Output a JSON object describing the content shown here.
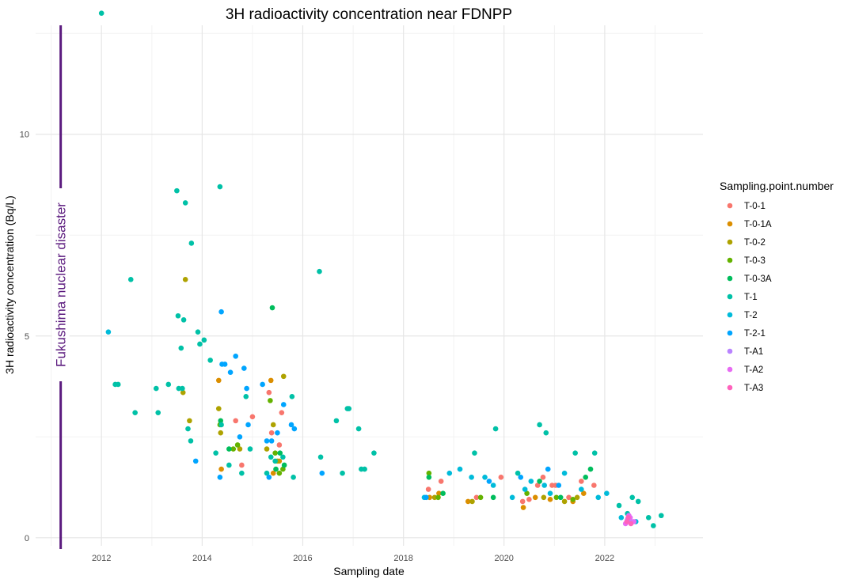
{
  "chart_data": {
    "type": "scatter",
    "title": "3H radioactivity concentration near FDNPP",
    "xlabel": "Sampling date",
    "ylabel": "3H radioactivity concentration (Bq/L)",
    "x_type": "date",
    "xlim": [
      "2010-09-10",
      "2023-12-15"
    ],
    "ylim": [
      -0.2,
      12.7
    ],
    "x_ticks": [
      "2012",
      "2014",
      "2016",
      "2018",
      "2020",
      "2022"
    ],
    "x_tick_dates": [
      "2012-01-01",
      "2014-01-01",
      "2016-01-01",
      "2018-01-01",
      "2020-01-01",
      "2022-01-01"
    ],
    "x_minor_dates": [
      "2011-01-01",
      "2013-01-01",
      "2015-01-01",
      "2017-01-01",
      "2019-01-01",
      "2021-01-01",
      "2023-01-01"
    ],
    "y_ticks": [
      0,
      5,
      10
    ],
    "y_minor": [
      2.5,
      7.5,
      12.5
    ],
    "grid": true,
    "legend_position": "right",
    "legend_title": "Sampling.point.number",
    "annotation": {
      "text": "Fukushima nuclear disaster",
      "date": "2011-03-11",
      "color": "#5b1a7e"
    },
    "series": [
      {
        "name": "T-0-1",
        "color": "#F8766D",
        "points": [
          [
            "2014-09-01",
            2.9
          ],
          [
            "2014-10-15",
            1.8
          ],
          [
            "2015-01-01",
            3.0
          ],
          [
            "2015-05-01",
            3.6
          ],
          [
            "2015-05-20",
            2.6
          ],
          [
            "2015-07-15",
            2.3
          ],
          [
            "2015-08-01",
            3.1
          ],
          [
            "2018-07-01",
            1.2
          ],
          [
            "2018-10-01",
            1.4
          ],
          [
            "2019-06-15",
            1.0
          ],
          [
            "2019-12-10",
            1.5
          ],
          [
            "2020-05-15",
            0.9
          ],
          [
            "2020-07-01",
            0.95
          ],
          [
            "2020-09-01",
            1.3
          ],
          [
            "2020-10-10",
            1.5
          ],
          [
            "2020-12-15",
            1.3
          ],
          [
            "2021-01-10",
            1.3
          ],
          [
            "2021-04-15",
            1.0
          ],
          [
            "2021-07-15",
            1.4
          ],
          [
            "2021-10-15",
            1.3
          ],
          [
            "2022-06-20",
            0.45
          ]
        ]
      },
      {
        "name": "T-0-1A",
        "color": "#DB8E00",
        "points": [
          [
            "2014-05-01",
            3.9
          ],
          [
            "2014-05-20",
            1.7
          ],
          [
            "2015-05-15",
            3.9
          ],
          [
            "2015-06-01",
            1.6
          ],
          [
            "2015-07-15",
            1.9
          ],
          [
            "2018-07-10",
            1.0
          ],
          [
            "2018-09-15",
            1.1
          ],
          [
            "2019-04-15",
            0.9
          ],
          [
            "2020-05-20",
            0.75
          ],
          [
            "2020-08-15",
            1.0
          ],
          [
            "2020-12-01",
            0.95
          ],
          [
            "2021-05-15",
            0.9
          ],
          [
            "2021-08-01",
            1.1
          ]
        ]
      },
      {
        "name": "T-0-2",
        "color": "#AEA200",
        "points": [
          [
            "2013-09-01",
            6.4
          ],
          [
            "2013-08-15",
            3.6
          ],
          [
            "2013-10-01",
            2.9
          ],
          [
            "2014-05-01",
            3.2
          ],
          [
            "2014-05-15",
            2.6
          ],
          [
            "2014-10-01",
            2.2
          ],
          [
            "2015-04-15",
            2.2
          ],
          [
            "2015-06-01",
            2.8
          ],
          [
            "2015-07-01",
            1.9
          ],
          [
            "2015-08-15",
            4.0
          ],
          [
            "2018-08-15",
            1.0
          ],
          [
            "2019-05-15",
            0.9
          ],
          [
            "2020-10-15",
            1.0
          ],
          [
            "2021-03-15",
            0.9
          ],
          [
            "2021-06-15",
            1.0
          ]
        ]
      },
      {
        "name": "T-0-3",
        "color": "#64B200",
        "points": [
          [
            "2014-05-10",
            2.8
          ],
          [
            "2014-08-15",
            2.2
          ],
          [
            "2014-09-15",
            2.3
          ],
          [
            "2015-05-10",
            3.4
          ],
          [
            "2015-06-15",
            2.1
          ],
          [
            "2015-07-15",
            1.6
          ],
          [
            "2015-08-10",
            1.7
          ],
          [
            "2018-07-05",
            1.6
          ],
          [
            "2018-09-10",
            1.0
          ],
          [
            "2019-07-15",
            1.0
          ],
          [
            "2020-06-15",
            1.1
          ],
          [
            "2021-01-15",
            1.0
          ],
          [
            "2021-05-15",
            0.95
          ]
        ]
      },
      {
        "name": "T-0-3A",
        "color": "#00BD5C",
        "points": [
          [
            "2014-05-15",
            2.9
          ],
          [
            "2014-07-15",
            2.2
          ],
          [
            "2015-05-25",
            5.7
          ],
          [
            "2015-06-20",
            1.7
          ],
          [
            "2015-07-20",
            2.1
          ],
          [
            "2015-08-20",
            1.8
          ],
          [
            "2018-07-05",
            1.5
          ],
          [
            "2018-10-15",
            1.1
          ],
          [
            "2019-10-15",
            1.0
          ],
          [
            "2020-09-15",
            1.4
          ],
          [
            "2021-02-15",
            1.0
          ],
          [
            "2021-08-15",
            1.5
          ],
          [
            "2021-09-20",
            1.7
          ]
        ]
      },
      {
        "name": "T-1",
        "color": "#00C1A7",
        "points": [
          [
            "2012-01-01",
            13.0
          ],
          [
            "2012-08-01",
            6.4
          ],
          [
            "2012-04-10",
            3.8
          ],
          [
            "2012-05-01",
            3.8
          ],
          [
            "2012-09-01",
            3.1
          ],
          [
            "2013-02-01",
            3.7
          ],
          [
            "2013-02-15",
            3.1
          ],
          [
            "2013-05-01",
            3.8
          ],
          [
            "2013-07-01",
            8.6
          ],
          [
            "2013-09-01",
            8.3
          ],
          [
            "2013-10-15",
            7.3
          ],
          [
            "2013-07-10",
            5.5
          ],
          [
            "2013-08-20",
            5.4
          ],
          [
            "2013-08-01",
            4.7
          ],
          [
            "2013-12-01",
            5.1
          ],
          [
            "2014-01-15",
            4.9
          ],
          [
            "2013-12-15",
            4.8
          ],
          [
            "2013-07-15",
            3.7
          ],
          [
            "2013-08-10",
            3.7
          ],
          [
            "2013-09-20",
            2.7
          ],
          [
            "2013-10-10",
            2.4
          ],
          [
            "2014-03-01",
            4.4
          ],
          [
            "2014-04-10",
            2.1
          ],
          [
            "2014-05-10",
            8.7
          ],
          [
            "2014-05-20",
            2.8
          ],
          [
            "2014-07-15",
            1.8
          ],
          [
            "2014-10-15",
            1.6
          ],
          [
            "2014-11-15",
            3.5
          ],
          [
            "2014-12-15",
            2.2
          ],
          [
            "2015-04-15",
            1.6
          ],
          [
            "2015-05-15",
            2.0
          ],
          [
            "2015-06-15",
            1.9
          ],
          [
            "2015-08-10",
            2.0
          ],
          [
            "2015-10-15",
            3.5
          ],
          [
            "2015-10-25",
            1.5
          ],
          [
            "2016-05-01",
            6.6
          ],
          [
            "2016-05-10",
            2.0
          ],
          [
            "2016-09-01",
            2.9
          ],
          [
            "2016-10-15",
            1.6
          ],
          [
            "2016-11-20",
            3.2
          ],
          [
            "2016-12-01",
            3.2
          ],
          [
            "2017-02-10",
            2.7
          ],
          [
            "2017-03-01",
            1.7
          ],
          [
            "2017-03-25",
            1.7
          ],
          [
            "2017-06-01",
            2.1
          ],
          [
            "2019-06-01",
            2.1
          ],
          [
            "2019-11-01",
            2.7
          ],
          [
            "2020-04-10",
            1.6
          ],
          [
            "2020-09-15",
            2.8
          ],
          [
            "2020-11-01",
            2.6
          ],
          [
            "2021-06-01",
            2.1
          ],
          [
            "2021-10-20",
            2.1
          ],
          [
            "2022-04-15",
            0.8
          ],
          [
            "2022-06-15",
            0.6
          ],
          [
            "2022-07-20",
            1.0
          ],
          [
            "2022-09-01",
            0.9
          ],
          [
            "2022-11-15",
            0.5
          ],
          [
            "2022-12-20",
            0.3
          ],
          [
            "2023-02-15",
            0.55
          ]
        ]
      },
      {
        "name": "T-2",
        "color": "#00BBDA",
        "points": [
          [
            "2012-02-20",
            5.1
          ],
          [
            "2018-06-01",
            1.0
          ],
          [
            "2018-12-01",
            1.6
          ],
          [
            "2019-02-15",
            1.7
          ],
          [
            "2019-05-10",
            1.5
          ],
          [
            "2019-08-15",
            1.5
          ],
          [
            "2019-10-15",
            1.3
          ],
          [
            "2020-03-01",
            1.0
          ],
          [
            "2020-06-01",
            1.2
          ],
          [
            "2020-07-15",
            1.4
          ],
          [
            "2020-10-20",
            1.3
          ],
          [
            "2020-12-01",
            1.1
          ],
          [
            "2021-03-15",
            1.6
          ],
          [
            "2021-07-15",
            1.2
          ],
          [
            "2021-11-15",
            1.0
          ],
          [
            "2022-01-15",
            1.1
          ],
          [
            "2022-05-01",
            0.5
          ],
          [
            "2022-08-15",
            0.4
          ]
        ]
      },
      {
        "name": "T-2-1",
        "color": "#00A5FF",
        "points": [
          [
            "2013-11-15",
            1.9
          ],
          [
            "2014-05-20",
            5.6
          ],
          [
            "2014-05-10",
            1.5
          ],
          [
            "2014-05-25",
            4.3
          ],
          [
            "2014-06-15",
            4.3
          ],
          [
            "2014-07-25",
            4.1
          ],
          [
            "2014-09-01",
            4.5
          ],
          [
            "2014-10-01",
            2.5
          ],
          [
            "2014-11-01",
            4.2
          ],
          [
            "2014-11-20",
            3.7
          ],
          [
            "2014-12-01",
            2.8
          ],
          [
            "2015-03-15",
            3.8
          ],
          [
            "2015-04-15",
            2.4
          ],
          [
            "2015-05-01",
            1.5
          ],
          [
            "2015-05-20",
            2.4
          ],
          [
            "2015-07-01",
            2.6
          ],
          [
            "2015-08-15",
            3.3
          ],
          [
            "2015-10-10",
            2.8
          ],
          [
            "2015-11-01",
            2.7
          ],
          [
            "2016-05-20",
            1.6
          ],
          [
            "2018-06-15",
            1.0
          ],
          [
            "2019-09-15",
            1.4
          ],
          [
            "2020-05-01",
            1.5
          ],
          [
            "2020-11-15",
            1.7
          ],
          [
            "2021-02-01",
            1.3
          ]
        ]
      },
      {
        "name": "T-A1",
        "color": "#B983FF",
        "points": [
          [
            "2022-06-15",
            0.45
          ],
          [
            "2022-07-15",
            0.4
          ]
        ]
      },
      {
        "name": "T-A2",
        "color": "#E76BF3",
        "points": [
          [
            "2022-06-01",
            0.35
          ],
          [
            "2022-06-25",
            0.55
          ],
          [
            "2022-07-05",
            0.5
          ],
          [
            "2022-08-01",
            0.4
          ]
        ]
      },
      {
        "name": "T-A3",
        "color": "#FF62BC",
        "points": [
          [
            "2022-06-10",
            0.4
          ],
          [
            "2022-06-20",
            0.5
          ],
          [
            "2022-07-10",
            0.35
          ]
        ]
      }
    ]
  }
}
